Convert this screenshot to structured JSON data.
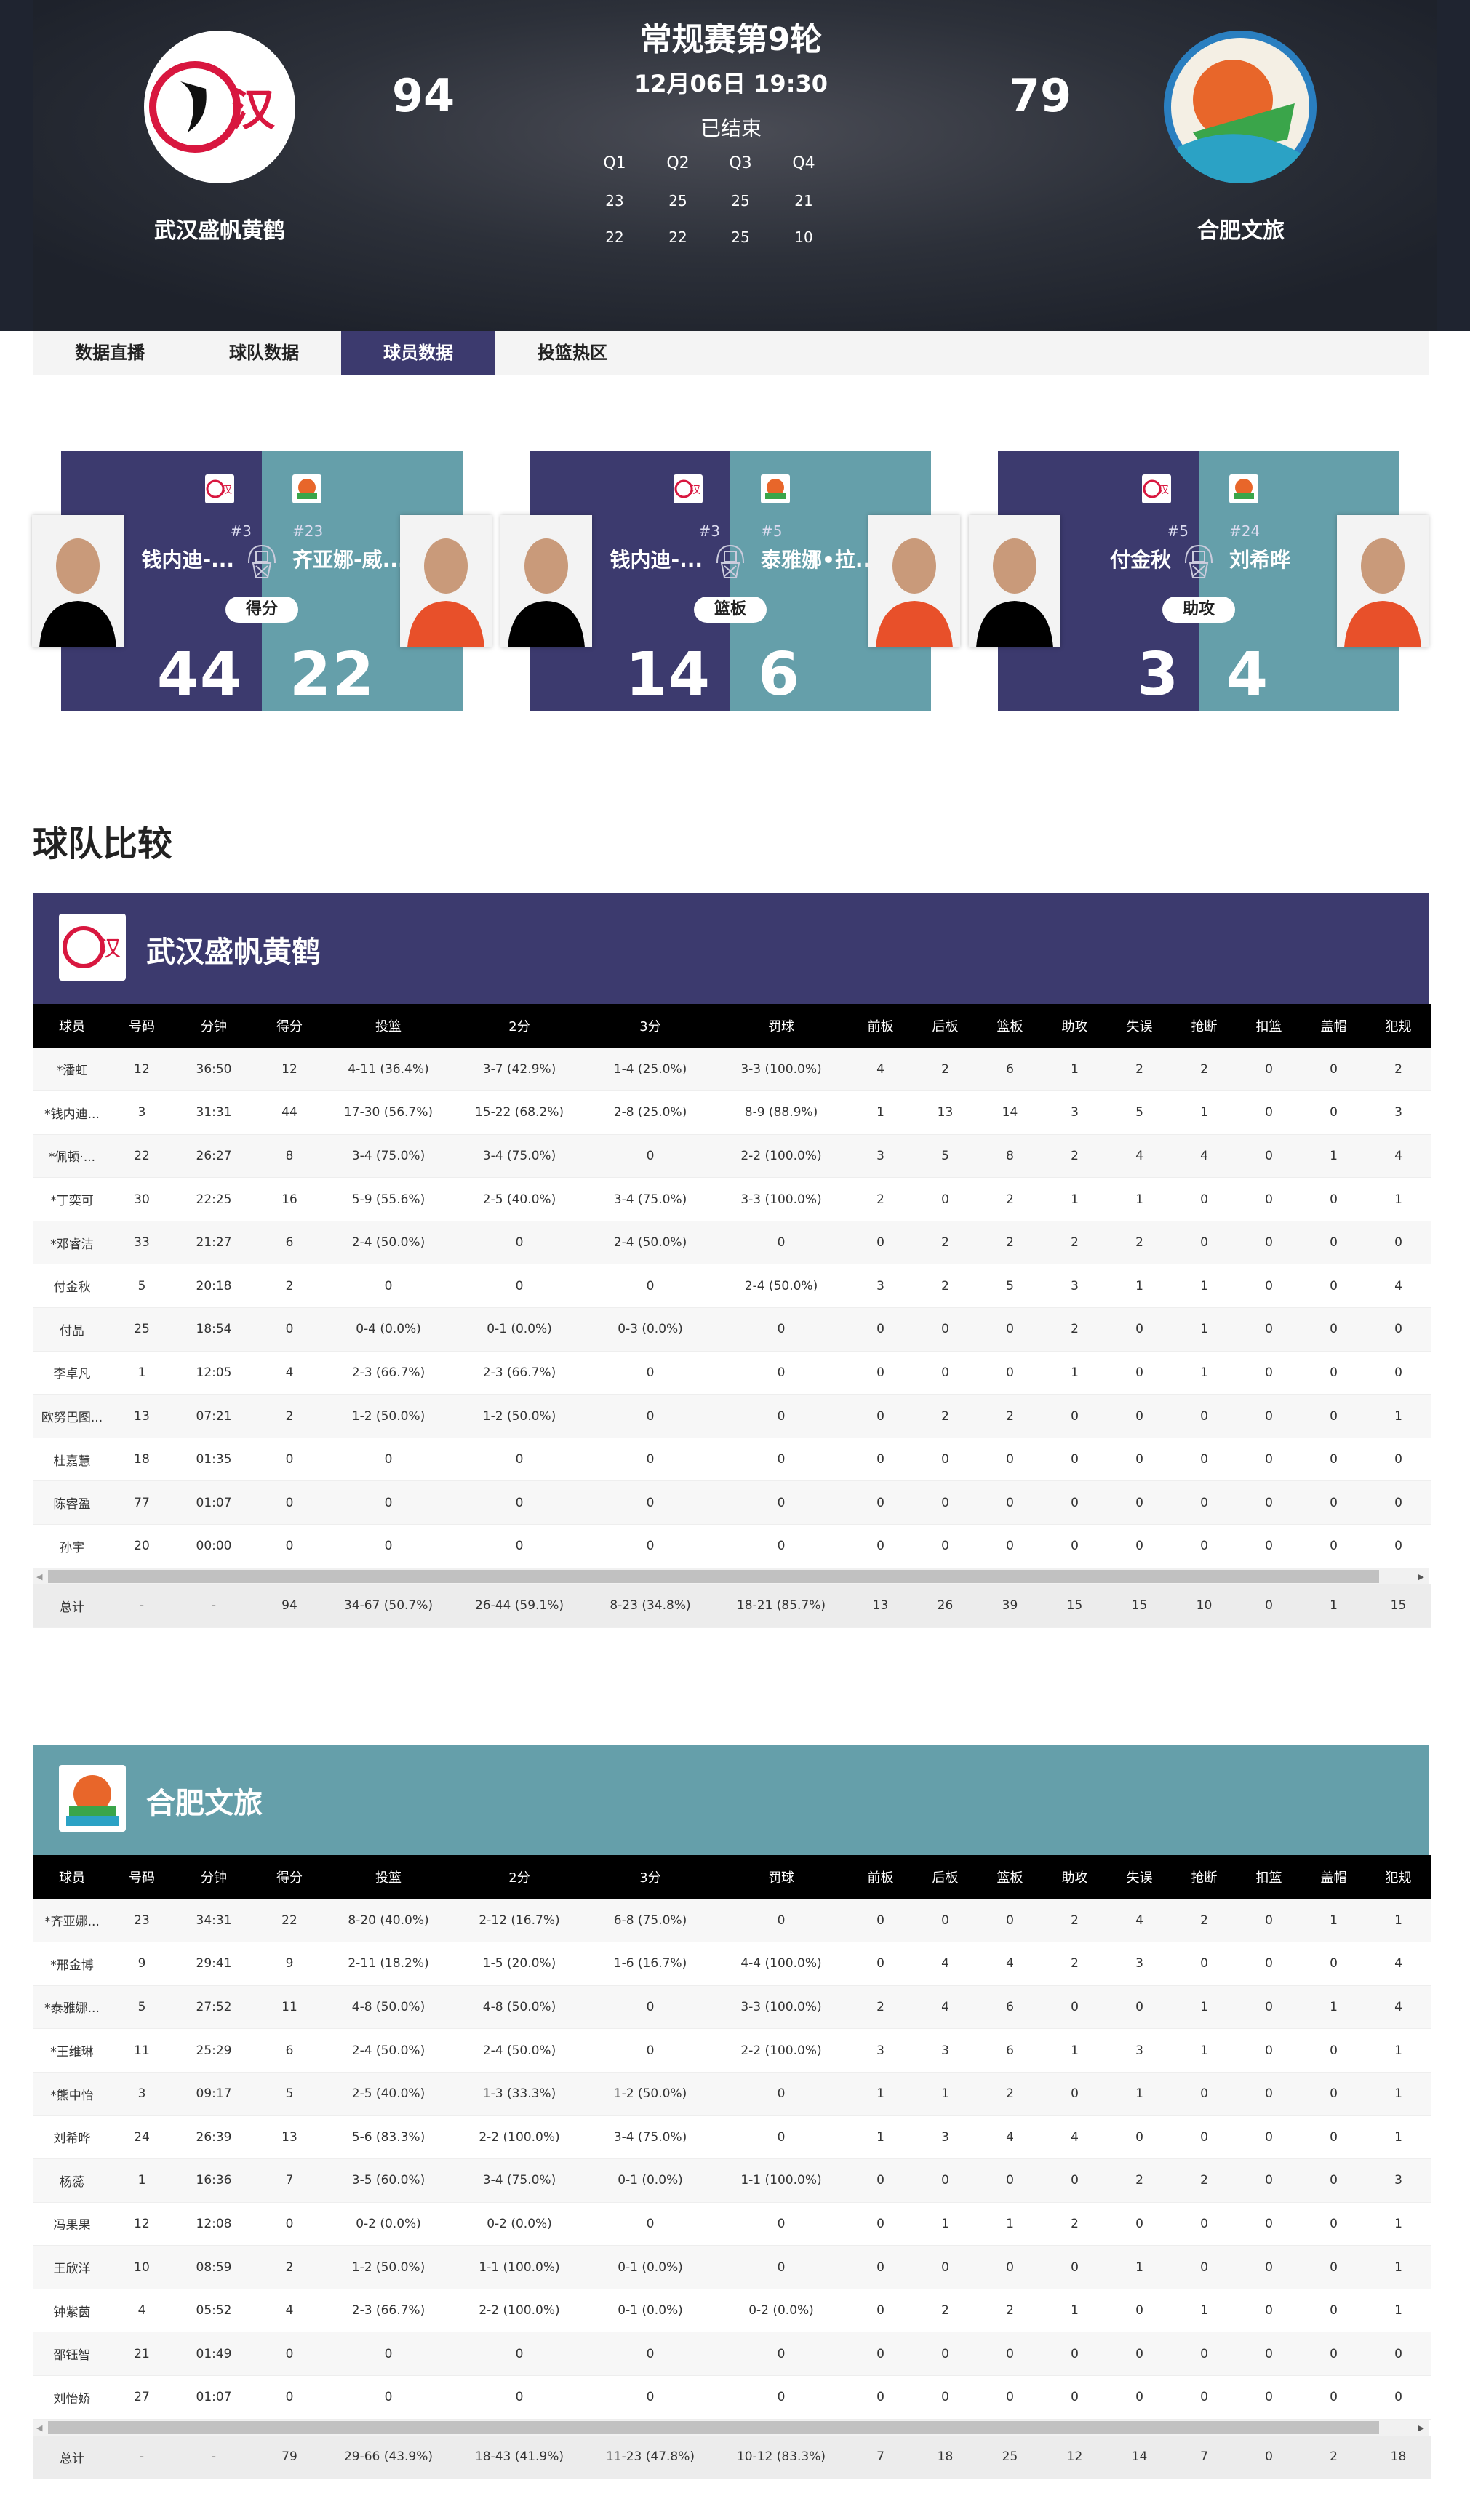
{
  "match": {
    "title": "常规赛第9轮",
    "datetime": "12月06日 19:30",
    "status": "已结束",
    "quarters": [
      "Q1",
      "Q2",
      "Q3",
      "Q4"
    ],
    "home": {
      "name": "武汉盛帆黄鹤",
      "score": "94",
      "q": [
        "23",
        "25",
        "25",
        "21"
      ]
    },
    "away": {
      "name": "合肥文旅",
      "score": "79",
      "q": [
        "22",
        "22",
        "25",
        "10"
      ]
    }
  },
  "tabs": [
    {
      "label": "数据直播"
    },
    {
      "label": "球队数据"
    },
    {
      "label": "球员数据",
      "active": true
    },
    {
      "label": "投篮热区"
    }
  ],
  "colors": {
    "home": "#3c3a6e",
    "away": "#659faa"
  },
  "leaders": [
    {
      "stat": "得分",
      "home": {
        "name": "钱内迪-...",
        "num": "#3",
        "value": "44"
      },
      "away": {
        "name": "齐亚娜-威...",
        "num": "#23",
        "value": "22"
      }
    },
    {
      "stat": "篮板",
      "home": {
        "name": "钱内迪-...",
        "num": "#3",
        "value": "14"
      },
      "away": {
        "name": "泰雅娜•拉...",
        "num": "#5",
        "value": "6"
      }
    },
    {
      "stat": "助攻",
      "home": {
        "name": "付金秋",
        "num": "#5",
        "value": "3"
      },
      "away": {
        "name": "刘希晔",
        "num": "#24",
        "value": "4"
      }
    }
  ],
  "section_title": "球队比较",
  "columns": [
    "球员",
    "号码",
    "分钟",
    "得分",
    "投篮",
    "2分",
    "3分",
    "罚球",
    "前板",
    "后板",
    "篮板",
    "助攻",
    "失误",
    "抢断",
    "扣篮",
    "盖帽",
    "犯规"
  ],
  "teams": [
    {
      "name": "武汉盛帆黄鹤",
      "rows": [
        [
          "*潘虹",
          "12",
          "36:50",
          "12",
          "4-11 (36.4%)",
          "3-7 (42.9%)",
          "1-4 (25.0%)",
          "3-3 (100.0%)",
          "4",
          "2",
          "6",
          "1",
          "2",
          "2",
          "0",
          "0",
          "2"
        ],
        [
          "*钱内迪...",
          "3",
          "31:31",
          "44",
          "17-30 (56.7%)",
          "15-22 (68.2%)",
          "2-8 (25.0%)",
          "8-9 (88.9%)",
          "1",
          "13",
          "14",
          "3",
          "5",
          "1",
          "0",
          "0",
          "3"
        ],
        [
          "*佩顿·...",
          "22",
          "26:27",
          "8",
          "3-4 (75.0%)",
          "3-4 (75.0%)",
          "0",
          "2-2 (100.0%)",
          "3",
          "5",
          "8",
          "2",
          "4",
          "4",
          "0",
          "1",
          "4"
        ],
        [
          "*丁奕可",
          "30",
          "22:25",
          "16",
          "5-9 (55.6%)",
          "2-5 (40.0%)",
          "3-4 (75.0%)",
          "3-3 (100.0%)",
          "2",
          "0",
          "2",
          "1",
          "1",
          "0",
          "0",
          "0",
          "1"
        ],
        [
          "*邓睿洁",
          "33",
          "21:27",
          "6",
          "2-4 (50.0%)",
          "0",
          "2-4 (50.0%)",
          "0",
          "0",
          "2",
          "2",
          "2",
          "2",
          "0",
          "0",
          "0",
          "0"
        ],
        [
          "付金秋",
          "5",
          "20:18",
          "2",
          "0",
          "0",
          "0",
          "2-4 (50.0%)",
          "3",
          "2",
          "5",
          "3",
          "1",
          "1",
          "0",
          "0",
          "4"
        ],
        [
          "付晶",
          "25",
          "18:54",
          "0",
          "0-4 (0.0%)",
          "0-1 (0.0%)",
          "0-3 (0.0%)",
          "0",
          "0",
          "0",
          "0",
          "2",
          "0",
          "1",
          "0",
          "0",
          "0"
        ],
        [
          "李卓凡",
          "1",
          "12:05",
          "4",
          "2-3 (66.7%)",
          "2-3 (66.7%)",
          "0",
          "0",
          "0",
          "0",
          "0",
          "1",
          "0",
          "1",
          "0",
          "0",
          "0"
        ],
        [
          "欧努巴图...",
          "13",
          "07:21",
          "2",
          "1-2 (50.0%)",
          "1-2 (50.0%)",
          "0",
          "0",
          "0",
          "2",
          "2",
          "0",
          "0",
          "0",
          "0",
          "0",
          "1"
        ],
        [
          "杜嘉慧",
          "18",
          "01:35",
          "0",
          "0",
          "0",
          "0",
          "0",
          "0",
          "0",
          "0",
          "0",
          "0",
          "0",
          "0",
          "0",
          "0"
        ],
        [
          "陈睿盈",
          "77",
          "01:07",
          "0",
          "0",
          "0",
          "0",
          "0",
          "0",
          "0",
          "0",
          "0",
          "0",
          "0",
          "0",
          "0",
          "0"
        ],
        [
          "孙宇",
          "20",
          "00:00",
          "0",
          "0",
          "0",
          "0",
          "0",
          "0",
          "0",
          "0",
          "0",
          "0",
          "0",
          "0",
          "0",
          "0"
        ]
      ],
      "total": [
        "总计",
        "-",
        "-",
        "94",
        "34-67 (50.7%)",
        "26-44 (59.1%)",
        "8-23 (34.8%)",
        "18-21 (85.7%)",
        "13",
        "26",
        "39",
        "15",
        "15",
        "10",
        "0",
        "1",
        "15"
      ]
    },
    {
      "name": "合肥文旅",
      "rows": [
        [
          "*齐亚娜...",
          "23",
          "34:31",
          "22",
          "8-20 (40.0%)",
          "2-12 (16.7%)",
          "6-8 (75.0%)",
          "0",
          "0",
          "0",
          "0",
          "2",
          "4",
          "2",
          "0",
          "1",
          "1"
        ],
        [
          "*邢金博",
          "9",
          "29:41",
          "9",
          "2-11 (18.2%)",
          "1-5 (20.0%)",
          "1-6 (16.7%)",
          "4-4 (100.0%)",
          "0",
          "4",
          "4",
          "2",
          "3",
          "0",
          "0",
          "0",
          "4"
        ],
        [
          "*泰雅娜...",
          "5",
          "27:52",
          "11",
          "4-8 (50.0%)",
          "4-8 (50.0%)",
          "0",
          "3-3 (100.0%)",
          "2",
          "4",
          "6",
          "0",
          "0",
          "1",
          "0",
          "1",
          "4"
        ],
        [
          "*王维琳",
          "11",
          "25:29",
          "6",
          "2-4 (50.0%)",
          "2-4 (50.0%)",
          "0",
          "2-2 (100.0%)",
          "3",
          "3",
          "6",
          "1",
          "3",
          "1",
          "0",
          "0",
          "1"
        ],
        [
          "*熊中怡",
          "3",
          "09:17",
          "5",
          "2-5 (40.0%)",
          "1-3 (33.3%)",
          "1-2 (50.0%)",
          "0",
          "1",
          "1",
          "2",
          "0",
          "1",
          "0",
          "0",
          "0",
          "1"
        ],
        [
          "刘希晔",
          "24",
          "26:39",
          "13",
          "5-6 (83.3%)",
          "2-2 (100.0%)",
          "3-4 (75.0%)",
          "0",
          "1",
          "3",
          "4",
          "4",
          "0",
          "0",
          "0",
          "0",
          "1"
        ],
        [
          "杨蕊",
          "1",
          "16:36",
          "7",
          "3-5 (60.0%)",
          "3-4 (75.0%)",
          "0-1 (0.0%)",
          "1-1 (100.0%)",
          "0",
          "0",
          "0",
          "0",
          "2",
          "2",
          "0",
          "0",
          "3"
        ],
        [
          "冯果果",
          "12",
          "12:08",
          "0",
          "0-2 (0.0%)",
          "0-2 (0.0%)",
          "0",
          "0",
          "0",
          "1",
          "1",
          "2",
          "0",
          "0",
          "0",
          "0",
          "1"
        ],
        [
          "王欣洋",
          "10",
          "08:59",
          "2",
          "1-2 (50.0%)",
          "1-1 (100.0%)",
          "0-1 (0.0%)",
          "0",
          "0",
          "0",
          "0",
          "0",
          "1",
          "0",
          "0",
          "0",
          "1"
        ],
        [
          "钟紫茵",
          "4",
          "05:52",
          "4",
          "2-3 (66.7%)",
          "2-2 (100.0%)",
          "0-1 (0.0%)",
          "0-2 (0.0%)",
          "0",
          "2",
          "2",
          "1",
          "0",
          "1",
          "0",
          "0",
          "1"
        ],
        [
          "邵钰智",
          "21",
          "01:49",
          "0",
          "0",
          "0",
          "0",
          "0",
          "0",
          "0",
          "0",
          "0",
          "0",
          "0",
          "0",
          "0",
          "0"
        ],
        [
          "刘怡娇",
          "27",
          "01:07",
          "0",
          "0",
          "0",
          "0",
          "0",
          "0",
          "0",
          "0",
          "0",
          "0",
          "0",
          "0",
          "0",
          "0"
        ]
      ],
      "total": [
        "总计",
        "-",
        "-",
        "79",
        "29-66 (43.9%)",
        "18-43 (41.9%)",
        "11-23 (47.8%)",
        "10-12 (83.3%)",
        "7",
        "18",
        "25",
        "12",
        "14",
        "7",
        "0",
        "2",
        "18"
      ]
    }
  ]
}
